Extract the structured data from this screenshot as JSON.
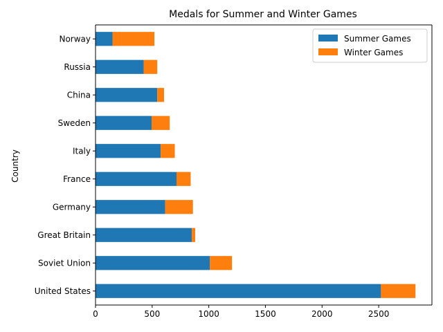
{
  "chart_data": {
    "type": "bar",
    "orientation": "horizontal",
    "stacked": true,
    "title": "Medals for Summer and Winter Games",
    "xlabel": "",
    "ylabel": "Country",
    "categories": [
      "United States",
      "Soviet Union",
      "Great Britain",
      "Germany",
      "France",
      "Italy",
      "Sweden",
      "China",
      "Russia",
      "Norway"
    ],
    "series": [
      {
        "name": "Summer Games",
        "color": "#1f77b4",
        "values": [
          2520,
          1010,
          850,
          615,
          715,
          575,
          495,
          545,
          425,
          150
        ]
      },
      {
        "name": "Winter Games",
        "color": "#ff7f0e",
        "values": [
          305,
          195,
          30,
          245,
          125,
          125,
          160,
          60,
          120,
          370
        ]
      }
    ],
    "xlim": [
      0,
      2970
    ],
    "xticks": [
      0,
      500,
      1000,
      1500,
      2000,
      2500
    ],
    "grid": false,
    "legend_position": "top-right"
  }
}
